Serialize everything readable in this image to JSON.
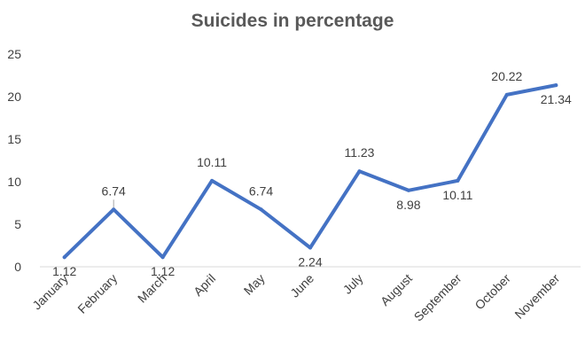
{
  "chart_data": {
    "type": "line",
    "title": "Suicides in percentage",
    "xlabel": "",
    "ylabel": "",
    "ylim": [
      0,
      25
    ],
    "yticks": [
      "0",
      "5",
      "10",
      "15",
      "20",
      "25"
    ],
    "grid": false,
    "legend": "none",
    "categories": [
      "January",
      "February",
      "March",
      "April",
      "May",
      "June",
      "July",
      "August",
      "September",
      "October",
      "November"
    ],
    "series": [
      {
        "values": [
          1.12,
          6.74,
          1.12,
          10.11,
          6.74,
          2.24,
          11.23,
          8.98,
          10.11,
          20.22,
          21.34
        ],
        "labels": [
          "1.12",
          "6.74",
          "1.12",
          "10.11",
          "6.74",
          "2.24",
          "11.23",
          "8.98",
          "10.11",
          "20.22",
          "21.34"
        ],
        "color": "#4472C4"
      }
    ],
    "axis_color": "#D9D9D9"
  }
}
